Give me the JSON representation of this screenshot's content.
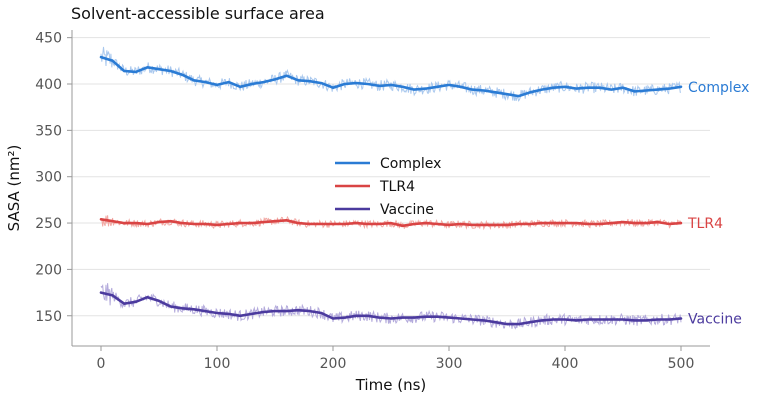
{
  "chart_data": {
    "type": "line",
    "title": "Solvent-accessible surface area",
    "xlabel": "Time (ns)",
    "ylabel": "SASA (nm²)",
    "xlim": [
      0,
      500
    ],
    "ylim": [
      0,
      450
    ],
    "xticks": [
      0,
      100,
      200,
      300,
      400,
      500
    ],
    "yticks": [
      150,
      200,
      250,
      300,
      350,
      400,
      450
    ],
    "grid": "horizontal",
    "legend_position": "center",
    "x": [
      0,
      10,
      20,
      30,
      40,
      50,
      60,
      70,
      80,
      90,
      100,
      110,
      120,
      130,
      140,
      150,
      160,
      170,
      180,
      190,
      200,
      210,
      220,
      230,
      240,
      250,
      260,
      270,
      280,
      290,
      300,
      310,
      320,
      330,
      340,
      350,
      360,
      370,
      380,
      390,
      400,
      410,
      420,
      430,
      440,
      450,
      460,
      470,
      480,
      490,
      500
    ],
    "series": [
      {
        "name": "Complex",
        "color": "#2a7bd4",
        "band_color": "#a9c8ee",
        "end_label": "Complex",
        "end_label_color": "#2a7bd4",
        "values": [
          429,
          425,
          414,
          413,
          418,
          416,
          414,
          410,
          404,
          402,
          399,
          402,
          397,
          400,
          402,
          405,
          409,
          404,
          403,
          401,
          396,
          400,
          401,
          400,
          398,
          399,
          397,
          394,
          395,
          397,
          399,
          397,
          394,
          393,
          391,
          389,
          387,
          391,
          394,
          396,
          397,
          395,
          396,
          396,
          394,
          396,
          392,
          393,
          394,
          395,
          397
        ]
      },
      {
        "name": "TLR4",
        "color": "#d94444",
        "band_color": "#f2a9a4",
        "end_label": "TLR4",
        "end_label_color": "#d94444",
        "values": [
          254,
          252,
          250,
          250,
          249,
          251,
          252,
          250,
          249,
          249,
          248,
          249,
          250,
          250,
          251,
          252,
          253,
          250,
          249,
          249,
          249,
          249,
          250,
          249,
          249,
          250,
          247,
          249,
          250,
          249,
          248,
          249,
          248,
          248,
          248,
          248,
          249,
          249,
          250,
          250,
          250,
          250,
          249,
          249,
          250,
          251,
          250,
          250,
          251,
          249,
          250
        ]
      },
      {
        "name": "Vaccine",
        "color": "#4b3a9e",
        "band_color": "#b4abdc",
        "end_label": "Vaccine",
        "end_label_color": "#4b3a9e",
        "values": [
          175,
          172,
          163,
          165,
          170,
          166,
          160,
          158,
          157,
          155,
          153,
          152,
          150,
          152,
          154,
          155,
          155,
          156,
          155,
          153,
          147,
          148,
          150,
          150,
          148,
          147,
          148,
          148,
          149,
          149,
          148,
          147,
          146,
          145,
          143,
          141,
          141,
          143,
          145,
          146,
          146,
          145,
          146,
          146,
          146,
          146,
          145,
          145,
          146,
          146,
          147
        ]
      }
    ]
  }
}
